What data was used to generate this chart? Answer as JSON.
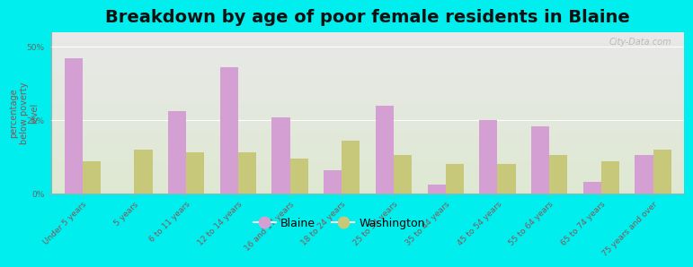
{
  "title": "Breakdown by age of poor female residents in Blaine",
  "ylabel": "percentage\nbelow poverty\nlevel",
  "categories": [
    "Under 5 years",
    "5 years",
    "6 to 11 years",
    "12 to 14 years",
    "16 and 17 years",
    "18 to 24 years",
    "25 to 34 years",
    "35 to 44 years",
    "45 to 54 years",
    "55 to 64 years",
    "65 to 74 years",
    "75 years and over"
  ],
  "blaine": [
    46,
    0,
    28,
    43,
    26,
    8,
    30,
    3,
    25,
    23,
    4,
    13
  ],
  "washington": [
    11,
    15,
    14,
    14,
    12,
    18,
    13,
    10,
    10,
    13,
    11,
    15
  ],
  "blaine_color": "#d4a0d4",
  "washington_color": "#c8c87a",
  "background_color": "#00eeee",
  "ylim": [
    0,
    55
  ],
  "yticks": [
    0,
    25,
    50
  ],
  "ytick_labels": [
    "0%",
    "25%",
    "50%"
  ],
  "bar_width": 0.35,
  "title_fontsize": 14,
  "axis_label_fontsize": 7,
  "tick_fontsize": 6.5,
  "legend_fontsize": 9,
  "watermark": "City-Data.com"
}
